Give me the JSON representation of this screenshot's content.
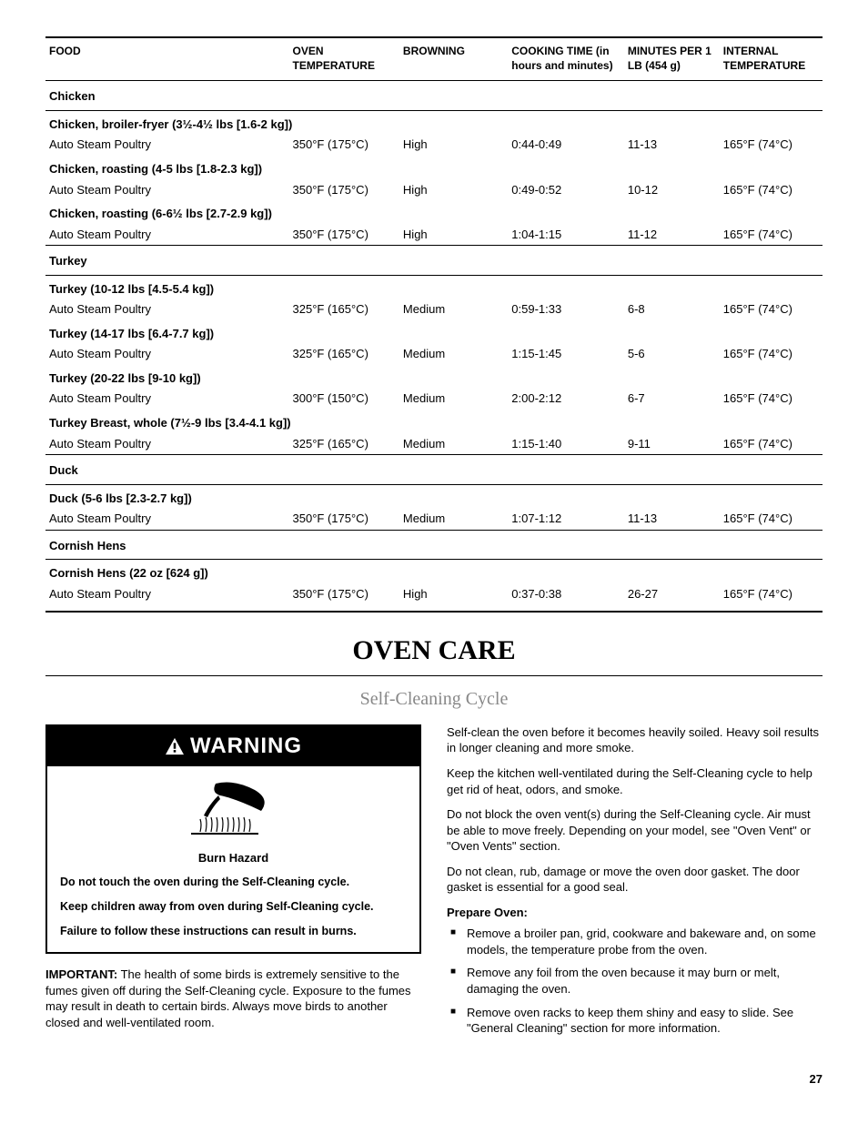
{
  "table": {
    "headers": {
      "food": "FOOD",
      "oven_temp": "OVEN TEMPERATURE",
      "browning": "BROWNING",
      "cooking_time": "COOKING TIME (in hours and minutes)",
      "min_per_lb": "MINUTES PER 1 LB (454 g)",
      "internal_temp": "INTERNAL TEMPERATURE"
    },
    "rows": [
      {
        "type": "section",
        "food": "Chicken"
      },
      {
        "type": "subhead",
        "food": "Chicken, broiler-fryer (3½-4½ lbs [1.6-2 kg])"
      },
      {
        "type": "data",
        "food": "Auto Steam Poultry",
        "oven_temp": "350°F (175°C)",
        "browning": "High",
        "cooking_time": "0:44-0:49",
        "min_per_lb": "11-13",
        "internal_temp": "165°F (74°C)"
      },
      {
        "type": "subhead",
        "food": "Chicken, roasting (4-5 lbs [1.8-2.3 kg])"
      },
      {
        "type": "data",
        "food": "Auto Steam Poultry",
        "oven_temp": "350°F (175°C)",
        "browning": "High",
        "cooking_time": "0:49-0:52",
        "min_per_lb": "10-12",
        "internal_temp": "165°F (74°C)"
      },
      {
        "type": "subhead",
        "food": "Chicken, roasting (6-6½ lbs [2.7-2.9 kg])"
      },
      {
        "type": "data",
        "food": "Auto Steam Poultry",
        "oven_temp": "350°F (175°C)",
        "browning": "High",
        "cooking_time": "1:04-1:15",
        "min_per_lb": "11-12",
        "internal_temp": "165°F (74°C)"
      },
      {
        "type": "section",
        "section_top": true,
        "food": "Turkey"
      },
      {
        "type": "subhead",
        "food": "Turkey (10-12 lbs [4.5-5.4 kg])"
      },
      {
        "type": "data",
        "food": "Auto Steam Poultry",
        "oven_temp": "325°F (165°C)",
        "browning": "Medium",
        "cooking_time": "0:59-1:33",
        "min_per_lb": "6-8",
        "internal_temp": "165°F (74°C)"
      },
      {
        "type": "subhead",
        "food": "Turkey (14-17 lbs [6.4-7.7 kg])"
      },
      {
        "type": "data",
        "food": "Auto Steam Poultry",
        "oven_temp": "325°F (165°C)",
        "browning": "Medium",
        "cooking_time": "1:15-1:45",
        "min_per_lb": "5-6",
        "internal_temp": "165°F (74°C)"
      },
      {
        "type": "subhead",
        "food": "Turkey (20-22 lbs [9-10 kg])"
      },
      {
        "type": "data",
        "food": "Auto Steam Poultry",
        "oven_temp": "300°F (150°C)",
        "browning": "Medium",
        "cooking_time": "2:00-2:12",
        "min_per_lb": "6-7",
        "internal_temp": "165°F (74°C)"
      },
      {
        "type": "subhead",
        "food": "Turkey Breast, whole (7½-9 lbs [3.4-4.1 kg])"
      },
      {
        "type": "data",
        "food": "Auto Steam Poultry",
        "oven_temp": "325°F (165°C)",
        "browning": "Medium",
        "cooking_time": "1:15-1:40",
        "min_per_lb": "9-11",
        "internal_temp": "165°F (74°C)"
      },
      {
        "type": "section",
        "section_top": true,
        "food": "Duck"
      },
      {
        "type": "subhead",
        "food": "Duck (5-6 lbs [2.3-2.7 kg])"
      },
      {
        "type": "data",
        "food": "Auto Steam Poultry",
        "oven_temp": "350°F (175°C)",
        "browning": "Medium",
        "cooking_time": "1:07-1:12",
        "min_per_lb": "11-13",
        "internal_temp": "165°F (74°C)"
      },
      {
        "type": "section",
        "section_top": true,
        "food": "Cornish Hens"
      },
      {
        "type": "subhead",
        "food": "Cornish Hens (22 oz [624 g])"
      },
      {
        "type": "data",
        "food": "Auto Steam Poultry",
        "oven_temp": "350°F (175°C)",
        "browning": "High",
        "cooking_time": "0:37-0:38",
        "min_per_lb": "26-27",
        "internal_temp": "165°F (74°C)"
      }
    ]
  },
  "headings": {
    "oven_care": "OVEN CARE",
    "self_cleaning": "Self-Cleaning Cycle"
  },
  "warning": {
    "label": "WARNING",
    "hazard": "Burn Hazard",
    "line1": "Do not touch the oven during the Self-Cleaning cycle.",
    "line2": "Keep children away from oven during Self-Cleaning cycle.",
    "line3": "Failure to follow these instructions can result in burns."
  },
  "important": {
    "label": "IMPORTANT:",
    "text": " The health of some birds is extremely sensitive to the fumes given off during the Self-Cleaning cycle. Exposure to the fumes may result in death to certain birds. Always move birds to another closed and well-ventilated room."
  },
  "right": {
    "p1": "Self-clean the oven before it becomes heavily soiled. Heavy soil results in longer cleaning and more smoke.",
    "p2": "Keep the kitchen well-ventilated during the Self-Cleaning cycle to help get rid of heat, odors, and smoke.",
    "p3": "Do not block the oven vent(s) during the Self-Cleaning cycle. Air must be able to move freely. Depending on your model, see \"Oven Vent\" or \"Oven Vents\" section.",
    "p4": "Do not clean, rub, damage or move the oven door gasket. The door gasket is essential for a good seal.",
    "prepare_title": "Prepare Oven:",
    "prepare": [
      "Remove a broiler pan, grid, cookware and bakeware and, on some models, the temperature probe from the oven.",
      "Remove any foil from the oven because it may burn or melt, damaging the oven.",
      "Remove oven racks to keep them shiny and easy to slide. See \"General Cleaning\" section for more information."
    ]
  },
  "page_number": "27"
}
